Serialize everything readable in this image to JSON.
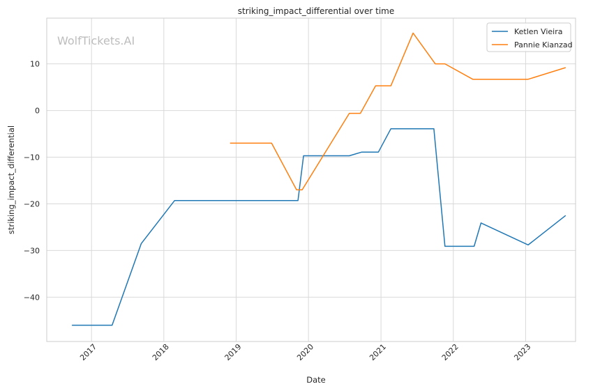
{
  "chart_data": {
    "type": "line",
    "title": "striking_impact_differential over time",
    "xlabel": "Date",
    "ylabel": "striking_impact_differential",
    "watermark": "WolfTickets.AI",
    "xlim": [
      "2016-05-20",
      "2023-09-10"
    ],
    "ylim": [
      -49.5,
      19.8
    ],
    "x_ticks": [
      "2017",
      "2018",
      "2019",
      "2020",
      "2021",
      "2022",
      "2023"
    ],
    "y_ticks": [
      10,
      0,
      -10,
      -20,
      -30,
      -40
    ],
    "y_tick_labels": [
      "10",
      "0",
      "−10",
      "−20",
      "−30",
      "−40"
    ],
    "grid": true,
    "legend_position": "top-right",
    "series": [
      {
        "name": "Ketlen Vieira",
        "color": "#1f77b4",
        "points": [
          [
            "2016-09-24",
            -46.0
          ],
          [
            "2017-04-15",
            -46.0
          ],
          [
            "2017-09-09",
            -28.5
          ],
          [
            "2018-02-24",
            -19.3
          ],
          [
            "2019-11-09",
            -19.3
          ],
          [
            "2019-12-07",
            -9.7
          ],
          [
            "2020-07-25",
            -9.7
          ],
          [
            "2020-09-26",
            -8.9
          ],
          [
            "2020-12-19",
            -8.9
          ],
          [
            "2021-02-20",
            -3.9
          ],
          [
            "2021-09-25",
            -3.9
          ],
          [
            "2021-11-20",
            -29.1
          ],
          [
            "2022-04-16",
            -29.1
          ],
          [
            "2022-05-21",
            -24.1
          ],
          [
            "2023-01-14",
            -28.8
          ],
          [
            "2023-07-22",
            -22.5
          ]
        ]
      },
      {
        "name": "Pannie Kianzad",
        "color": "#ff7f0e",
        "points": [
          [
            "2018-12-01",
            -7.0
          ],
          [
            "2019-06-29",
            -7.0
          ],
          [
            "2019-11-02",
            -17.0
          ],
          [
            "2019-11-30",
            -17.0
          ],
          [
            "2020-07-25",
            -0.6
          ],
          [
            "2020-09-19",
            -0.6
          ],
          [
            "2020-12-05",
            5.3
          ],
          [
            "2021-02-20",
            5.3
          ],
          [
            "2021-06-12",
            16.6
          ],
          [
            "2021-10-02",
            10.0
          ],
          [
            "2021-11-20",
            10.0
          ],
          [
            "2022-04-09",
            6.7
          ],
          [
            "2023-01-14",
            6.7
          ],
          [
            "2023-07-22",
            9.2
          ]
        ]
      }
    ]
  }
}
